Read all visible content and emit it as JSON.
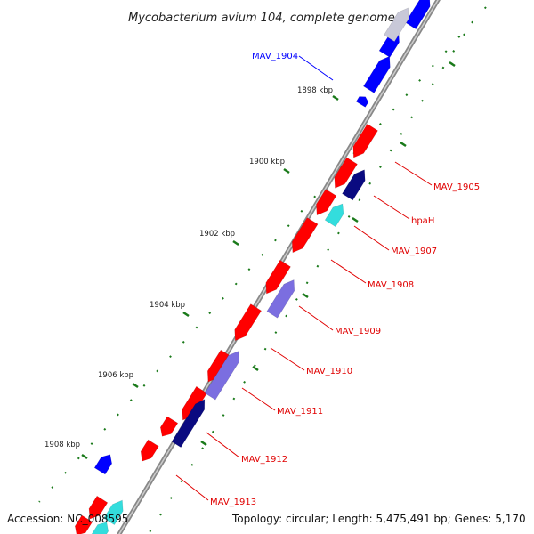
{
  "title": "Mycobacterium avium 104, complete genome",
  "footer": {
    "accession": "Accession: NC_008595",
    "summary": "Topology: circular; Length: 5,475,491 bp; Genes: 5,170"
  },
  "colors": {
    "forward_gene": "#ff0000",
    "reverse_gene": "#0000ff",
    "label_red": "#e00000",
    "label_blue": "#0000ff",
    "tick": "#1a7a1a",
    "backbone": "#999999",
    "light_purple": "#7b6ee0",
    "dark_navy": "#0a0a80",
    "cyan": "#33dddd",
    "grey": "#c8c8d8"
  },
  "ticks": [
    "1898 kbp",
    "1900 kbp",
    "1902 kbp",
    "1904 kbp",
    "1906 kbp",
    "1908 kbp"
  ],
  "gene_labels": [
    {
      "name": "MAV_1904",
      "strand": "reverse"
    },
    {
      "name": "MAV_1905",
      "strand": "forward"
    },
    {
      "name": "hpaH",
      "strand": "forward"
    },
    {
      "name": "MAV_1907",
      "strand": "forward"
    },
    {
      "name": "MAV_1908",
      "strand": "forward"
    },
    {
      "name": "MAV_1909",
      "strand": "forward"
    },
    {
      "name": "MAV_1910",
      "strand": "forward"
    },
    {
      "name": "MAV_1911",
      "strand": "forward"
    },
    {
      "name": "MAV_1912",
      "strand": "forward"
    },
    {
      "name": "MAV_1913",
      "strand": "forward"
    }
  ]
}
